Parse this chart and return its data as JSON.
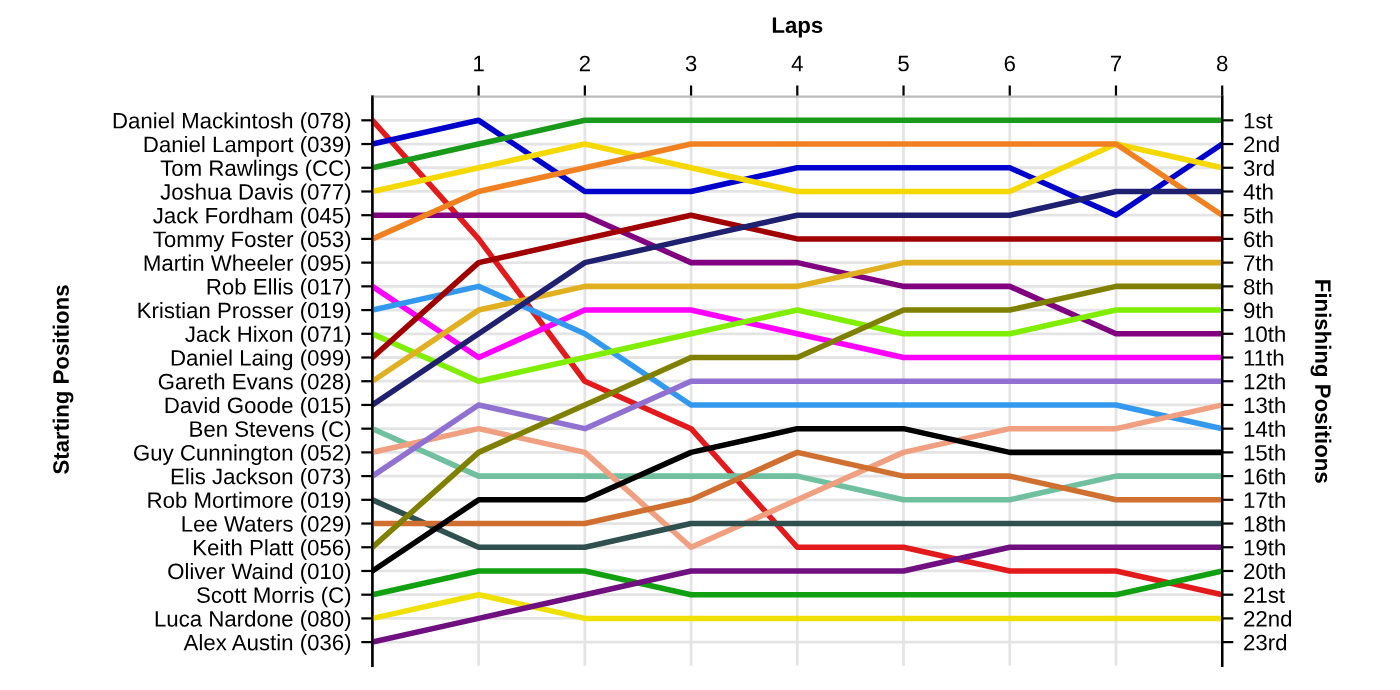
{
  "chart_data": {
    "type": "line",
    "xlabel": "Laps",
    "ylabel": "Finishing Positions",
    "annotations": [
      "Starting Positions"
    ],
    "x": [
      0,
      1,
      2,
      3,
      4,
      5,
      6,
      7,
      8
    ],
    "xlim": [
      0,
      8
    ],
    "xticks": [
      1,
      2,
      3,
      4,
      5,
      6,
      7,
      8
    ],
    "y_categories": [
      "Daniel Mackintosh (078)",
      "Daniel Lamport (039)",
      "Tom Rawlings (CC)",
      "Joshua Davis (077)",
      "Jack Fordham (045)",
      "Tommy Foster (053)",
      "Martin Wheeler (095)",
      "Rob Ellis (017)",
      "Kristian Prosser (019)",
      "Jack Hixon (071)",
      "Daniel Laing (099)",
      "Gareth Evans (028)",
      "David Goode (015)",
      "Ben Stevens (C)",
      "Guy Cunnington (052)",
      "Elis Jackson (073)",
      "Rob Mortimore (019)",
      "Lee Waters (029)",
      "Keith Platt (056)",
      "Oliver Waind (010)",
      "Scott Morris (C)",
      "Luca Nardone (080)",
      "Alex Austin (036)"
    ],
    "ylim": [
      24,
      0
    ],
    "yticks": [
      {
        "value": 1,
        "label": "1st"
      },
      {
        "value": 2,
        "label": "2nd"
      },
      {
        "value": 3,
        "label": "3rd"
      },
      {
        "value": 4,
        "label": "4th"
      },
      {
        "value": 5,
        "label": "5th"
      },
      {
        "value": 6,
        "label": "6th"
      },
      {
        "value": 7,
        "label": "7th"
      },
      {
        "value": 8,
        "label": "8th"
      },
      {
        "value": 9,
        "label": "9th"
      },
      {
        "value": 10,
        "label": "10th"
      },
      {
        "value": 11,
        "label": "11th"
      },
      {
        "value": 12,
        "label": "12th"
      },
      {
        "value": 13,
        "label": "13th"
      },
      {
        "value": 14,
        "label": "14th"
      },
      {
        "value": 15,
        "label": "15th"
      },
      {
        "value": 16,
        "label": "16th"
      },
      {
        "value": 17,
        "label": "17th"
      },
      {
        "value": 18,
        "label": "18th"
      },
      {
        "value": 19,
        "label": "19th"
      },
      {
        "value": 20,
        "label": "20th"
      },
      {
        "value": 21,
        "label": "21st"
      },
      {
        "value": 22,
        "label": "22nd"
      },
      {
        "value": 23,
        "label": "23rd"
      }
    ],
    "grid": true,
    "marker": "none",
    "line_style": "solid",
    "series": [
      {
        "color": "#e31a1c",
        "values": [
          1,
          6,
          12,
          14,
          19,
          19,
          20,
          20,
          21
        ]
      },
      {
        "color": "#0000cc",
        "values": [
          2,
          1,
          4,
          4,
          3,
          3,
          3,
          5,
          2
        ]
      },
      {
        "color": "#1a9a1a",
        "values": [
          3,
          2,
          1,
          1,
          1,
          1,
          1,
          1,
          1
        ]
      },
      {
        "color": "#f5d800",
        "values": [
          4,
          3,
          2,
          3,
          4,
          4,
          4,
          2,
          3
        ]
      },
      {
        "color": "#800080",
        "values": [
          5,
          5,
          5,
          7,
          7,
          8,
          8,
          10,
          10
        ]
      },
      {
        "color": "#f08020",
        "values": [
          6,
          4,
          3,
          2,
          2,
          2,
          2,
          2,
          5
        ]
      },
      {
        "color": "#ff00ff",
        "values": [
          8,
          11,
          9,
          9,
          10,
          11,
          11,
          11,
          11
        ]
      },
      {
        "color": "#3399ee",
        "values": [
          9,
          8,
          10,
          13,
          13,
          13,
          13,
          13,
          14
        ]
      },
      {
        "color": "#80ee00",
        "values": [
          10,
          12,
          11,
          10,
          9,
          10,
          10,
          9,
          9
        ]
      },
      {
        "color": "#a00000",
        "values": [
          11,
          7,
          6,
          5,
          6,
          6,
          6,
          6,
          6
        ]
      },
      {
        "color": "#e0b020",
        "values": [
          12,
          9,
          8,
          8,
          8,
          7,
          7,
          7,
          7
        ]
      },
      {
        "color": "#202070",
        "values": [
          13,
          10,
          7,
          6,
          5,
          5,
          5,
          4,
          4
        ]
      },
      {
        "color": "#70c0a0",
        "values": [
          14,
          16,
          16,
          16,
          16,
          17,
          17,
          16,
          16
        ]
      },
      {
        "color": "#f0a080",
        "values": [
          15,
          14,
          15,
          19,
          17,
          15,
          14,
          14,
          13
        ]
      },
      {
        "color": "#9070d0",
        "values": [
          16,
          13,
          14,
          12,
          12,
          12,
          12,
          12,
          12
        ]
      },
      {
        "color": "#305050",
        "values": [
          17,
          19,
          19,
          18,
          18,
          18,
          18,
          18,
          18
        ]
      },
      {
        "color": "#d07030",
        "values": [
          18,
          18,
          18,
          17,
          15,
          16,
          16,
          17,
          17
        ]
      },
      {
        "color": "#808000",
        "values": [
          19,
          15,
          13,
          11,
          11,
          9,
          9,
          8,
          8
        ]
      },
      {
        "color": "#000000",
        "values": [
          20,
          17,
          17,
          15,
          14,
          14,
          15,
          15,
          15
        ]
      },
      {
        "color": "#10a010",
        "values": [
          21,
          20,
          20,
          21,
          21,
          21,
          21,
          21,
          20
        ]
      },
      {
        "color": "#f0e000",
        "values": [
          22,
          21,
          22,
          22,
          22,
          22,
          22,
          22,
          22
        ]
      },
      {
        "color": "#701080",
        "values": [
          23,
          22,
          21,
          20,
          20,
          20,
          19,
          19,
          19
        ]
      }
    ]
  }
}
